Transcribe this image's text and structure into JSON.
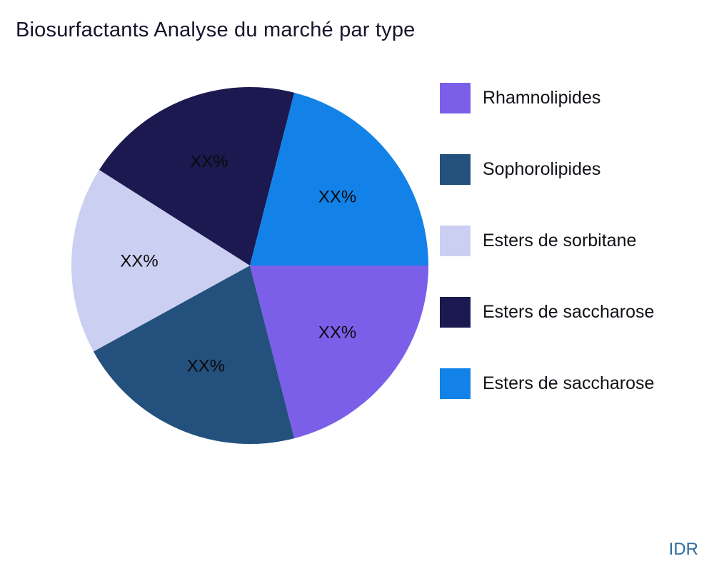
{
  "title": "Biosurfactants Analyse du marché par type",
  "watermark": "IDR",
  "legend": {
    "items": [
      {
        "label": "Rhamnolipides",
        "color": "#7B5FE8"
      },
      {
        "label": "Sophorolipides",
        "color": "#24507D"
      },
      {
        "label": "Esters de sorbitane",
        "color": "#CBD0F2"
      },
      {
        "label": "Esters de saccharose",
        "color": "#1B1950"
      },
      {
        "label": "Esters de saccharose",
        "color": "#1282E8"
      }
    ]
  },
  "chart_data": {
    "type": "pie",
    "title": "Biosurfactants Analyse du marché par type",
    "labels": [
      "Rhamnolipides",
      "Sophorolipides",
      "Esters de sorbitane",
      "Esters de saccharose",
      "Esters de saccharose"
    ],
    "values": [
      21,
      21,
      17,
      20,
      21
    ],
    "slice_labels": [
      "XX%",
      "XX%",
      "XX%",
      "XX%",
      "XX%"
    ],
    "colors": [
      "#7B5FE8",
      "#24507D",
      "#CBD0F2",
      "#1B1950",
      "#1282E8"
    ],
    "start_angle_deg": 0,
    "direction": "clockwise",
    "legend_position": "right",
    "label_radius_ratio": 0.62
  }
}
